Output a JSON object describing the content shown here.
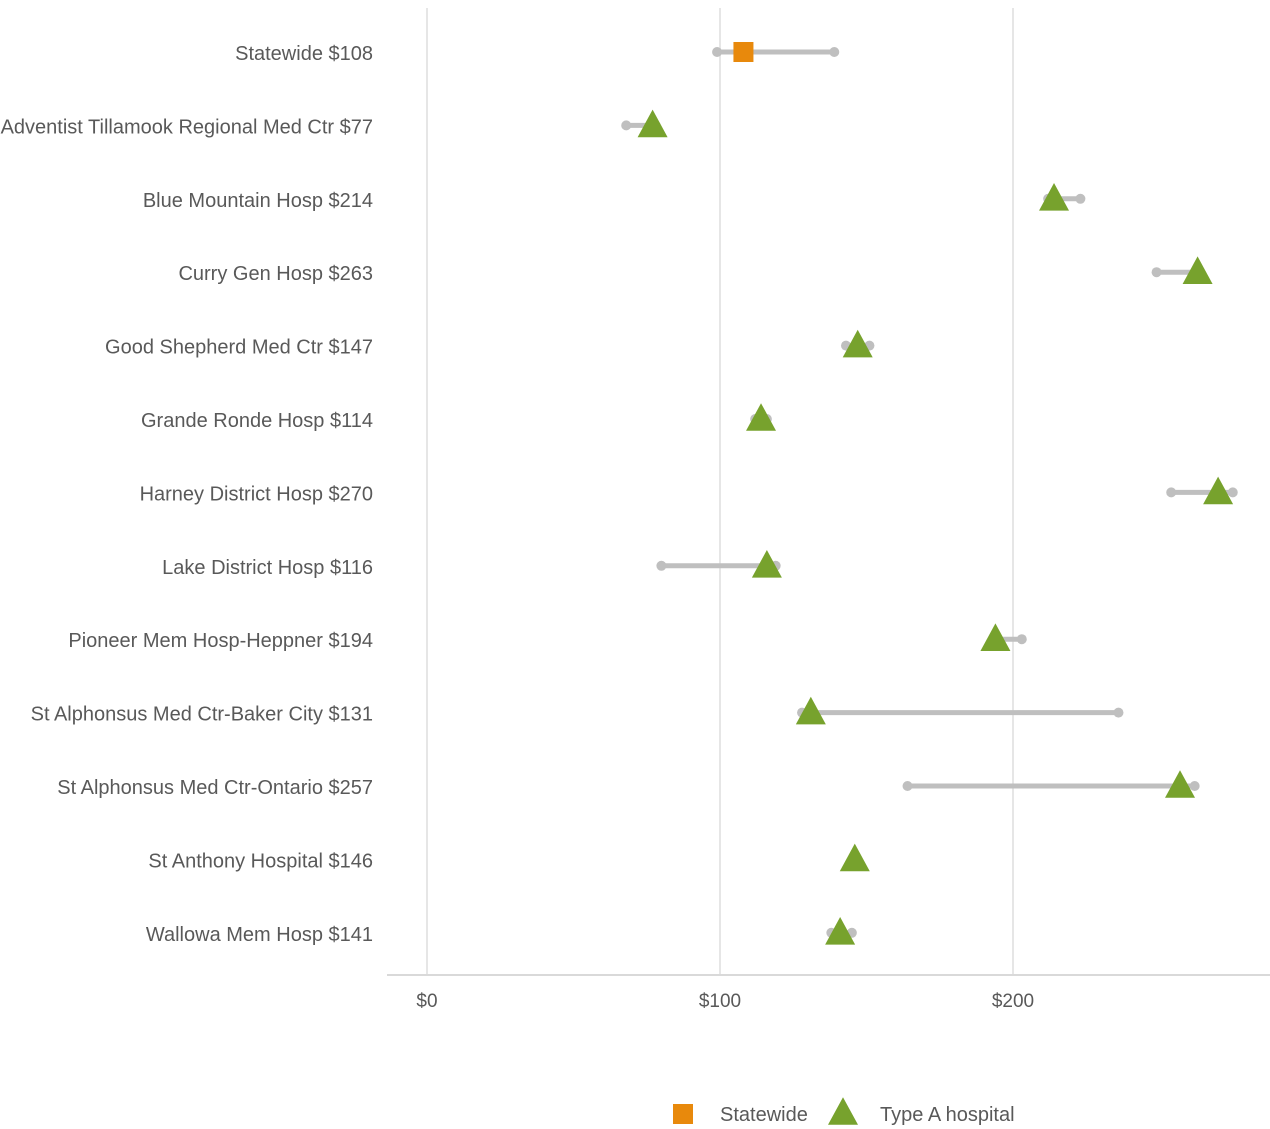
{
  "chart_data": {
    "type": "scatter",
    "style": "dumbbell",
    "x_ticks": [
      0,
      100,
      200
    ],
    "x_tick_labels": [
      "$0",
      "$100",
      "$200"
    ],
    "xlim": [
      0,
      290
    ],
    "grid": "vertical-major",
    "legend_position": "bottom",
    "legend": [
      {
        "label": "Statewide",
        "marker": "square",
        "color": "#E8890C"
      },
      {
        "label": "Type A hospital",
        "marker": "triangle",
        "color": "#77A22D"
      }
    ],
    "colors": {
      "range": "#BFBFBF",
      "statewide": "#E8890C",
      "type_a": "#77A22D",
      "grid": "#E6E6E6",
      "axis": "#D9D9D9",
      "text": "#595959"
    },
    "rows": [
      {
        "label": "Statewide $108",
        "value": 108,
        "low": 99,
        "high": 139,
        "group": "statewide"
      },
      {
        "label": "Adventist Tillamook Regional Med Ctr $77",
        "value": 77,
        "low": 68,
        "high": 78,
        "group": "type_a"
      },
      {
        "label": "Blue Mountain Hosp $214",
        "value": 214,
        "low": 212,
        "high": 223,
        "group": "type_a"
      },
      {
        "label": "Curry Gen Hosp $263",
        "value": 263,
        "low": 249,
        "high": 263,
        "group": "type_a"
      },
      {
        "label": "Good Shepherd Med Ctr $147",
        "value": 147,
        "low": 143,
        "high": 151,
        "group": "type_a"
      },
      {
        "label": "Grande Ronde Hosp $114",
        "value": 114,
        "low": 112,
        "high": 116,
        "group": "type_a"
      },
      {
        "label": "Harney District Hosp $270",
        "value": 270,
        "low": 254,
        "high": 275,
        "group": "type_a"
      },
      {
        "label": "Lake District Hosp $116",
        "value": 116,
        "low": 80,
        "high": 119,
        "group": "type_a"
      },
      {
        "label": "Pioneer Mem Hosp-Heppner $194",
        "value": 194,
        "low": 194,
        "high": 203,
        "group": "type_a"
      },
      {
        "label": "St Alphonsus Med Ctr-Baker City $131",
        "value": 131,
        "low": 128,
        "high": 236,
        "group": "type_a"
      },
      {
        "label": "St Alphonsus Med Ctr-Ontario $257",
        "value": 257,
        "low": 164,
        "high": 262,
        "group": "type_a"
      },
      {
        "label": "St Anthony Hospital $146",
        "value": 146,
        "low": 146,
        "high": 146,
        "group": "type_a"
      },
      {
        "label": "Wallowa Mem Hosp $141",
        "value": 141,
        "low": 138,
        "high": 145,
        "group": "type_a"
      }
    ]
  }
}
